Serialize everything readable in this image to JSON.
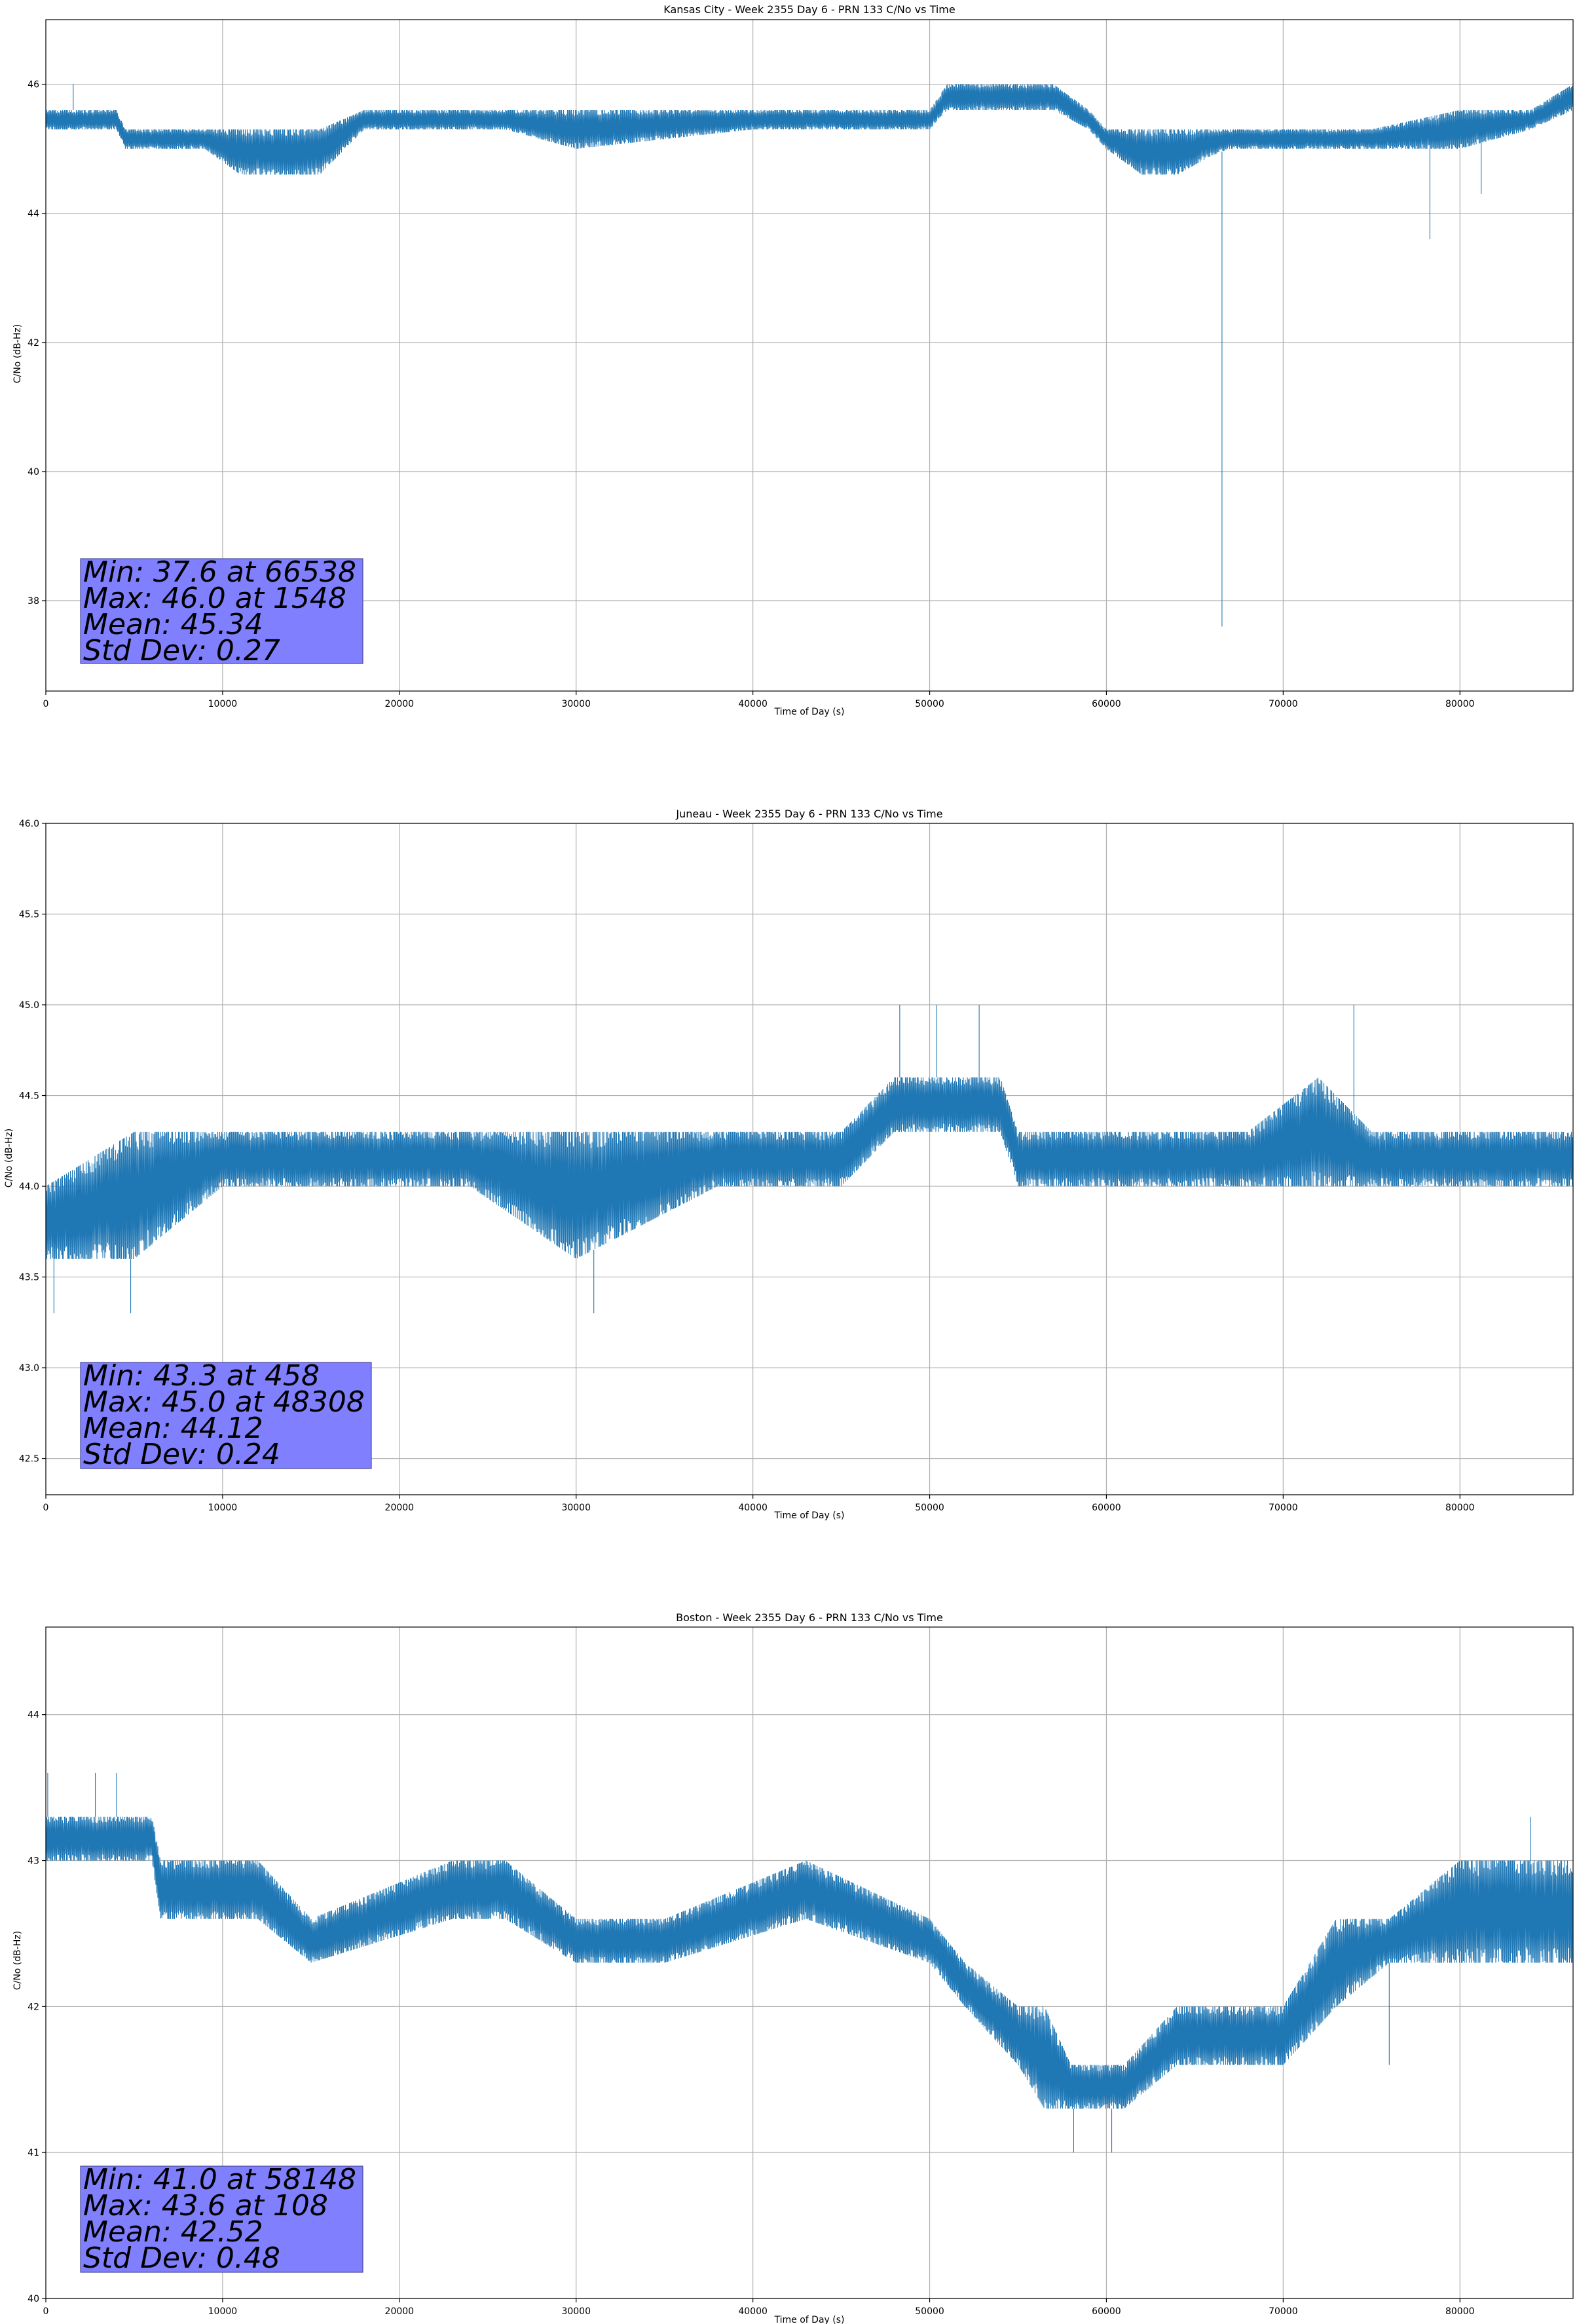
{
  "colors": {
    "series": "#1f77b4",
    "stats_box": "#8080ff",
    "grid": "#b0b0b0"
  },
  "chart_data": [
    {
      "type": "line",
      "title": "Kansas City - Week 2355 Day 6 - PRN 133 C/No vs Time",
      "xlabel": "Time of Day (s)",
      "ylabel": "C/No (dB-Hz)",
      "xlim": [
        0,
        86400
      ],
      "ylim": [
        36.6,
        47.0
      ],
      "xticks": [
        0,
        10000,
        20000,
        30000,
        40000,
        50000,
        60000,
        70000,
        80000
      ],
      "xtick_labels": [
        "0",
        "10000",
        "20000",
        "30000",
        "40000",
        "50000",
        "60000",
        "70000",
        "80000"
      ],
      "yticks": [
        38,
        40,
        42,
        44,
        46
      ],
      "ytick_labels": [
        "38",
        "40",
        "42",
        "44",
        "46"
      ],
      "grid": true,
      "series": [
        {
          "name": "C/No",
          "x": [
            0,
            4000,
            4500,
            9000,
            11000,
            15500,
            18000,
            22000,
            26000,
            30000,
            40000,
            50000,
            51000,
            57000,
            59000,
            60000,
            62000,
            64000,
            66000,
            67000,
            70000,
            75000,
            80000,
            84000,
            86400
          ],
          "low": [
            45.3,
            45.3,
            45.0,
            45.0,
            44.6,
            44.6,
            45.3,
            45.3,
            45.3,
            45.0,
            45.3,
            45.3,
            45.6,
            45.6,
            45.3,
            45.0,
            44.6,
            44.6,
            44.9,
            45.0,
            45.0,
            45.0,
            45.0,
            45.3,
            45.6
          ],
          "high": [
            45.6,
            45.6,
            45.3,
            45.3,
            45.3,
            45.3,
            45.6,
            45.6,
            45.6,
            45.6,
            45.6,
            45.6,
            46.0,
            46.0,
            45.6,
            45.3,
            45.3,
            45.3,
            45.3,
            45.3,
            45.3,
            45.3,
            45.6,
            45.6,
            46.0
          ]
        }
      ],
      "spikes": [
        {
          "x": 66538,
          "y": 37.6
        },
        {
          "x": 78300,
          "y": 43.6
        },
        {
          "x": 81200,
          "y": 44.3
        },
        {
          "x": 1548,
          "y": 46.0
        }
      ],
      "stats": [
        "Min: 37.6 at 66538",
        "Max: 46.0 at 1548",
        "Mean: 45.34",
        "Std Dev: 0.27"
      ]
    },
    {
      "type": "line",
      "title": "Juneau - Week 2355 Day 6 - PRN 133 C/No vs Time",
      "xlabel": "Time of Day (s)",
      "ylabel": "C/No (dB-Hz)",
      "xlim": [
        0,
        86400
      ],
      "ylim": [
        42.3,
        46.0
      ],
      "xticks": [
        0,
        10000,
        20000,
        30000,
        40000,
        50000,
        60000,
        70000,
        80000
      ],
      "xtick_labels": [
        "0",
        "10000",
        "20000",
        "30000",
        "40000",
        "50000",
        "60000",
        "70000",
        "80000"
      ],
      "yticks": [
        42.5,
        43.0,
        43.5,
        44.0,
        44.5,
        45.0,
        45.5,
        46.0
      ],
      "ytick_labels": [
        "42.5",
        "43.0",
        "43.5",
        "44.0",
        "44.5",
        "45.0",
        "45.5",
        "46.0"
      ],
      "grid": true,
      "series": [
        {
          "name": "C/No",
          "x": [
            0,
            5000,
            10000,
            16000,
            24000,
            30000,
            38000,
            45000,
            48000,
            54000,
            55000,
            60000,
            68000,
            72000,
            75000,
            80000,
            86400
          ],
          "low": [
            43.6,
            43.6,
            44.0,
            44.0,
            44.0,
            43.6,
            44.0,
            44.0,
            44.3,
            44.3,
            44.0,
            44.0,
            44.0,
            44.0,
            44.0,
            44.0,
            44.0
          ],
          "high": [
            44.0,
            44.3,
            44.3,
            44.3,
            44.3,
            44.3,
            44.3,
            44.3,
            44.6,
            44.6,
            44.3,
            44.3,
            44.3,
            44.6,
            44.3,
            44.3,
            44.3
          ]
        }
      ],
      "spikes": [
        {
          "x": 458,
          "y": 43.3
        },
        {
          "x": 4800,
          "y": 43.3
        },
        {
          "x": 31000,
          "y": 43.3
        },
        {
          "x": 48308,
          "y": 45.0
        },
        {
          "x": 50400,
          "y": 45.0
        },
        {
          "x": 52800,
          "y": 45.0
        },
        {
          "x": 74000,
          "y": 45.0
        }
      ],
      "stats": [
        "Min: 43.3 at 458",
        "Max: 45.0 at 48308",
        "Mean: 44.12",
        "Std Dev: 0.24"
      ]
    },
    {
      "type": "line",
      "title": "Boston - Week 2355 Day 6 - PRN 133 C/No vs Time",
      "xlabel": "Time of Day (s)",
      "ylabel": "C/No (dB-Hz)",
      "xlim": [
        0,
        86400
      ],
      "ylim": [
        40.0,
        44.6
      ],
      "xticks": [
        0,
        10000,
        20000,
        30000,
        40000,
        50000,
        60000,
        70000,
        80000
      ],
      "xtick_labels": [
        "0",
        "10000",
        "20000",
        "30000",
        "40000",
        "50000",
        "60000",
        "70000",
        "80000"
      ],
      "yticks": [
        40,
        41,
        42,
        43,
        44
      ],
      "ytick_labels": [
        "40",
        "41",
        "42",
        "43",
        "44"
      ],
      "grid": true,
      "series": [
        {
          "name": "C/No",
          "x": [
            0,
            6000,
            6500,
            12000,
            15000,
            23000,
            26000,
            30000,
            35000,
            43000,
            50000,
            52000,
            55000,
            56500,
            58000,
            61000,
            64000,
            70000,
            73000,
            76000,
            80000,
            86400
          ],
          "low": [
            43.0,
            43.0,
            42.6,
            42.6,
            42.3,
            42.6,
            42.6,
            42.3,
            42.3,
            42.6,
            42.3,
            42.0,
            41.6,
            41.3,
            41.3,
            41.3,
            41.6,
            41.6,
            42.0,
            42.3,
            42.3,
            42.3
          ],
          "high": [
            43.3,
            43.3,
            43.0,
            43.0,
            42.6,
            43.0,
            43.0,
            42.6,
            42.6,
            43.0,
            42.6,
            42.3,
            42.0,
            42.0,
            41.6,
            41.6,
            42.0,
            42.0,
            42.6,
            42.6,
            43.0,
            43.0
          ]
        }
      ],
      "spikes": [
        {
          "x": 108,
          "y": 43.6
        },
        {
          "x": 2800,
          "y": 43.6
        },
        {
          "x": 4000,
          "y": 43.6
        },
        {
          "x": 58148,
          "y": 41.0
        },
        {
          "x": 60300,
          "y": 41.0
        },
        {
          "x": 76000,
          "y": 41.6
        },
        {
          "x": 84000,
          "y": 43.3
        }
      ],
      "stats": [
        "Min: 41.0 at 58148",
        "Max: 43.6 at 108",
        "Mean: 42.52",
        "Std Dev: 0.48"
      ]
    }
  ]
}
